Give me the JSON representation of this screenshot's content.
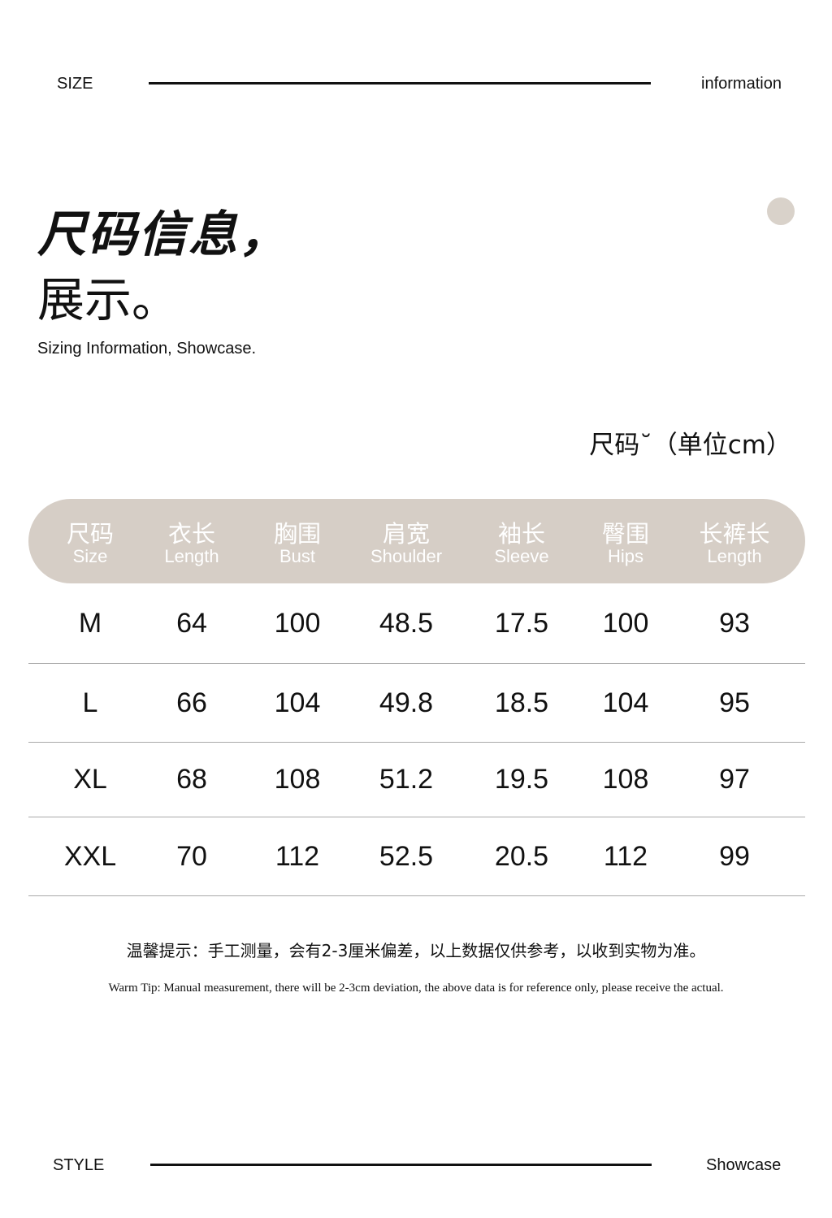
{
  "top_bar": {
    "left": "SIZE",
    "right": "information"
  },
  "title": {
    "line1": "尺码信息，",
    "line2": "展示。",
    "subtitle": "Sizing Information, Showcase."
  },
  "unit_label": "尺码˘（单位cm）",
  "table": {
    "headers": [
      {
        "zh": "尺码",
        "en": "Size"
      },
      {
        "zh": "衣长",
        "en": "Length"
      },
      {
        "zh": "胸围",
        "en": "Bust"
      },
      {
        "zh": "肩宽",
        "en": "Shoulder"
      },
      {
        "zh": "袖长",
        "en": "Sleeve"
      },
      {
        "zh": "臀围",
        "en": "Hips"
      },
      {
        "zh": "长裤长",
        "en": "Length"
      }
    ],
    "rows": [
      [
        "M",
        "64",
        "100",
        "48.5",
        "17.5",
        "100",
        "93"
      ],
      [
        "L",
        "66",
        "104",
        "49.8",
        "18.5",
        "104",
        "95"
      ],
      [
        "XL",
        "68",
        "108",
        "51.2",
        "19.5",
        "108",
        "97"
      ],
      [
        "XXL",
        "70",
        "112",
        "52.5",
        "20.5",
        "112",
        "99"
      ]
    ]
  },
  "tip": {
    "zh": "温馨提示：手工测量，会有2-3厘米偏差，以上数据仅供参考，以收到实物为准。",
    "en": "Warm Tip: Manual measurement, there will be 2-3cm deviation, the above data is for reference only, please receive the actual."
  },
  "bottom_bar": {
    "left": "STYLE",
    "right": "Showcase"
  },
  "colors": {
    "header_bg": "#d6cec6",
    "dot": "#d9d2ca"
  }
}
